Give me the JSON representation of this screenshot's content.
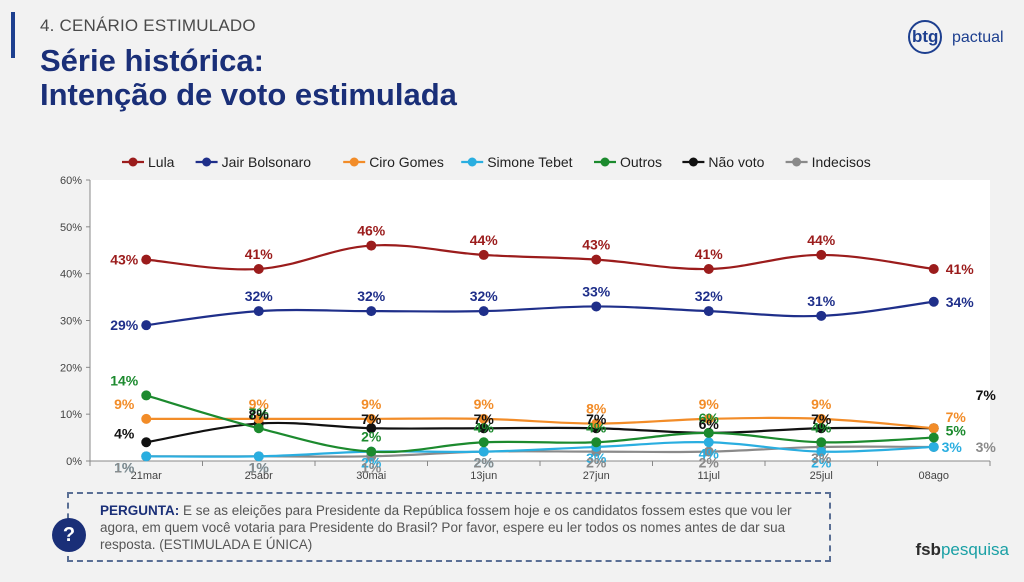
{
  "header": {
    "section": "4. CENÁRIO ESTIMULADO",
    "title_line1": "Série histórica:",
    "title_line2": "Intenção de voto estimulada",
    "logo_btg": "btg",
    "logo_pactual": "pactual"
  },
  "question": {
    "label": "PERGUNTA:",
    "text": "E se as eleições para Presidente da República fossem hoje e os candidatos fossem estes que vou ler agora, em quem você votaria para Presidente do Brasil? Por favor, espere eu ler todos os nomes antes de dar sua resposta. (ESTIMULADA E ÚNICA)",
    "icon": "?"
  },
  "footer": {
    "brand_fsb": "fsb",
    "brand_pesquisa": "pesquisa"
  },
  "chart_data": {
    "type": "line",
    "categories": [
      "21mar",
      "25abr",
      "30mai",
      "13jun",
      "27jun",
      "11jul",
      "25jul",
      "08ago"
    ],
    "ylim": [
      0,
      60
    ],
    "yticks": [
      0,
      10,
      20,
      30,
      40,
      50,
      60
    ],
    "ytick_labels": [
      "0%",
      "10%",
      "20%",
      "30%",
      "40%",
      "50%",
      "60%"
    ],
    "legend_position": "top",
    "series": [
      {
        "name": "Lula",
        "color": "#9b1c1c",
        "values": [
          43,
          41,
          46,
          44,
          43,
          41,
          44,
          41
        ]
      },
      {
        "name": "Jair Bolsonaro",
        "color": "#1f2f8a",
        "values": [
          29,
          32,
          32,
          32,
          33,
          32,
          31,
          34
        ]
      },
      {
        "name": "Ciro Gomes",
        "color": "#f28c28",
        "values": [
          9,
          9,
          9,
          9,
          8,
          9,
          9,
          7
        ]
      },
      {
        "name": "Simone Tebet",
        "color": "#2aaee0",
        "values": [
          1,
          1,
          2,
          2,
          3,
          4,
          2,
          3
        ]
      },
      {
        "name": "Outros",
        "color": "#1c8a2e",
        "values": [
          14,
          7,
          2,
          4,
          4,
          6,
          4,
          5
        ]
      },
      {
        "name": "Não voto",
        "color": "#111111",
        "values": [
          4,
          8,
          7,
          7,
          7,
          6,
          7,
          7
        ]
      },
      {
        "name": "Indecisos",
        "color": "#8a8a8a",
        "values": [
          1,
          1,
          1,
          2,
          2,
          2,
          3,
          3
        ]
      }
    ]
  }
}
